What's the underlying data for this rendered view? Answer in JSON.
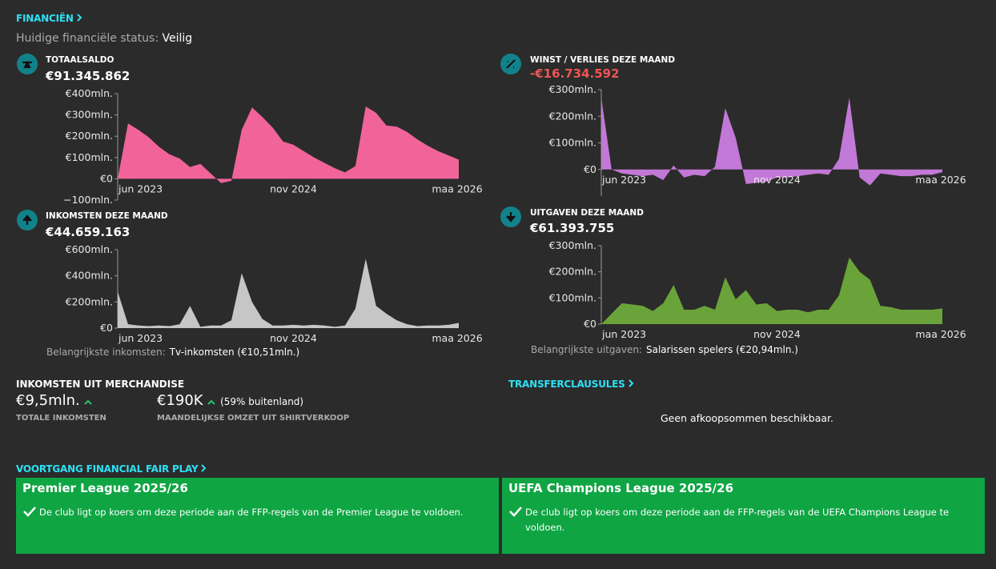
{
  "header": {
    "title": "FINANCIËN",
    "status_label": "Huidige financiële status:",
    "status_value": "Veilig"
  },
  "chart_data": [
    {
      "type": "area",
      "title": "TOTAALSALDO",
      "amount": "€91.345.862",
      "color": "#f0649a",
      "categories": [
        "jun 2023",
        null,
        null,
        null,
        null,
        null,
        null,
        null,
        null,
        null,
        null,
        null,
        null,
        null,
        null,
        null,
        null,
        "nov 2024",
        null,
        null,
        null,
        null,
        null,
        null,
        null,
        null,
        null,
        null,
        null,
        null,
        null,
        null,
        null,
        "maa 2026"
      ],
      "values": [
        0,
        260,
        230,
        195,
        150,
        115,
        95,
        55,
        70,
        25,
        -20,
        -10,
        230,
        335,
        290,
        240,
        175,
        160,
        130,
        100,
        75,
        50,
        30,
        60,
        340,
        310,
        250,
        245,
        220,
        185,
        155,
        130,
        110,
        90
      ],
      "ylim": [
        -100,
        400
      ],
      "yticks": [
        {
          "value": -100,
          "label": "−100mln."
        },
        {
          "value": 0,
          "label": "€0"
        },
        {
          "value": 100,
          "label": "€100mln."
        },
        {
          "value": 200,
          "label": "€200mln."
        },
        {
          "value": 300,
          "label": "€300mln."
        },
        {
          "value": 400,
          "label": "€400mln."
        }
      ]
    },
    {
      "type": "area",
      "title": "WINST / VERLIES DEZE MAAND",
      "amount": "-€16.734.592",
      "color": "#c278d6",
      "categories": [
        "jun 2023",
        null,
        null,
        null,
        null,
        null,
        null,
        null,
        null,
        null,
        null,
        null,
        null,
        null,
        null,
        null,
        null,
        "nov 2024",
        null,
        null,
        null,
        null,
        null,
        null,
        null,
        null,
        null,
        null,
        null,
        null,
        null,
        null,
        null,
        "maa 2026"
      ],
      "values": [
        270,
        0,
        -15,
        -20,
        -25,
        -20,
        -40,
        15,
        -30,
        -20,
        -25,
        10,
        230,
        120,
        -55,
        -50,
        -45,
        -30,
        -30,
        -25,
        -20,
        -15,
        -20,
        40,
        270,
        -30,
        -60,
        -15,
        -20,
        -25,
        -25,
        -20,
        -20,
        -10
      ],
      "ylim": [
        -100,
        300
      ],
      "yticks": [
        {
          "value": 0,
          "label": "€0"
        },
        {
          "value": 100,
          "label": "€100mln."
        },
        {
          "value": 200,
          "label": "€200mln."
        },
        {
          "value": 300,
          "label": "€300mln."
        }
      ]
    },
    {
      "type": "area",
      "title": "INKOMSTEN DEZE MAAND",
      "amount": "€44.659.163",
      "color": "#c6c6c6",
      "note_label": "Belangrijkste inkomsten:",
      "note_value": "Tv-inkomsten (€10,51mln.)",
      "categories": [
        "jun 2023",
        null,
        null,
        null,
        null,
        null,
        null,
        null,
        null,
        null,
        null,
        null,
        null,
        null,
        null,
        null,
        null,
        "nov 2024",
        null,
        null,
        null,
        null,
        null,
        null,
        null,
        null,
        null,
        null,
        null,
        null,
        null,
        null,
        null,
        "maa 2026"
      ],
      "values": [
        280,
        30,
        20,
        15,
        20,
        15,
        30,
        170,
        10,
        20,
        20,
        60,
        420,
        200,
        70,
        20,
        20,
        25,
        20,
        25,
        20,
        10,
        20,
        150,
        530,
        170,
        110,
        60,
        30,
        15,
        20,
        20,
        25,
        40
      ],
      "ylim": [
        0,
        600
      ],
      "yticks": [
        {
          "value": 0,
          "label": "€0"
        },
        {
          "value": 200,
          "label": "€200mln."
        },
        {
          "value": 400,
          "label": "€400mln."
        },
        {
          "value": 600,
          "label": "€600mln."
        }
      ]
    },
    {
      "type": "area",
      "title": "UITGAVEN DEZE MAAND",
      "amount": "€61.393.755",
      "color": "#6aa339",
      "note_label": "Belangrijkste uitgaven:",
      "note_value": "Salarissen spelers (€20,94mln.)",
      "categories": [
        "jun 2023",
        null,
        null,
        null,
        null,
        null,
        null,
        null,
        null,
        null,
        null,
        null,
        null,
        null,
        null,
        null,
        null,
        "nov 2024",
        null,
        null,
        null,
        null,
        null,
        null,
        null,
        null,
        null,
        null,
        null,
        null,
        null,
        null,
        null,
        "maa 2026"
      ],
      "values": [
        0,
        40,
        80,
        75,
        70,
        50,
        80,
        150,
        55,
        55,
        70,
        55,
        180,
        95,
        130,
        75,
        80,
        50,
        55,
        55,
        45,
        55,
        55,
        110,
        255,
        200,
        170,
        70,
        65,
        55,
        55,
        55,
        55,
        60
      ],
      "ylim": [
        0,
        300
      ],
      "yticks": [
        {
          "value": 0,
          "label": "€0"
        },
        {
          "value": 100,
          "label": "€100mln."
        },
        {
          "value": 200,
          "label": "€200mln."
        },
        {
          "value": 300,
          "label": "€300mln."
        }
      ]
    }
  ],
  "merchandise": {
    "title": "INKOMSTEN UIT MERCHANDISE",
    "total_value": "€9,5mln.",
    "total_label": "TOTALE INKOMSTEN",
    "shirt_value": "€190K",
    "shirt_extra": "(59% buitenland)",
    "shirt_label": "MAANDELIJKSE OMZET UIT SHIRTVERKOOP"
  },
  "transfer": {
    "title": "TRANSFERCLAUSULES",
    "message": "Geen afkoopsommen beschikbaar."
  },
  "ffp": {
    "title": "VOORTGANG FINANCIAL FAIR PLAY",
    "cards": [
      {
        "title": "Premier League 2025/26",
        "text": "De club ligt op koers om deze periode aan de FFP-regels van de Premier League te voldoen."
      },
      {
        "title": "UEFA Champions League 2025/26",
        "text": "De club ligt op koers om deze periode aan de FFP-regels van de UEFA Champions League te voldoen."
      }
    ]
  }
}
